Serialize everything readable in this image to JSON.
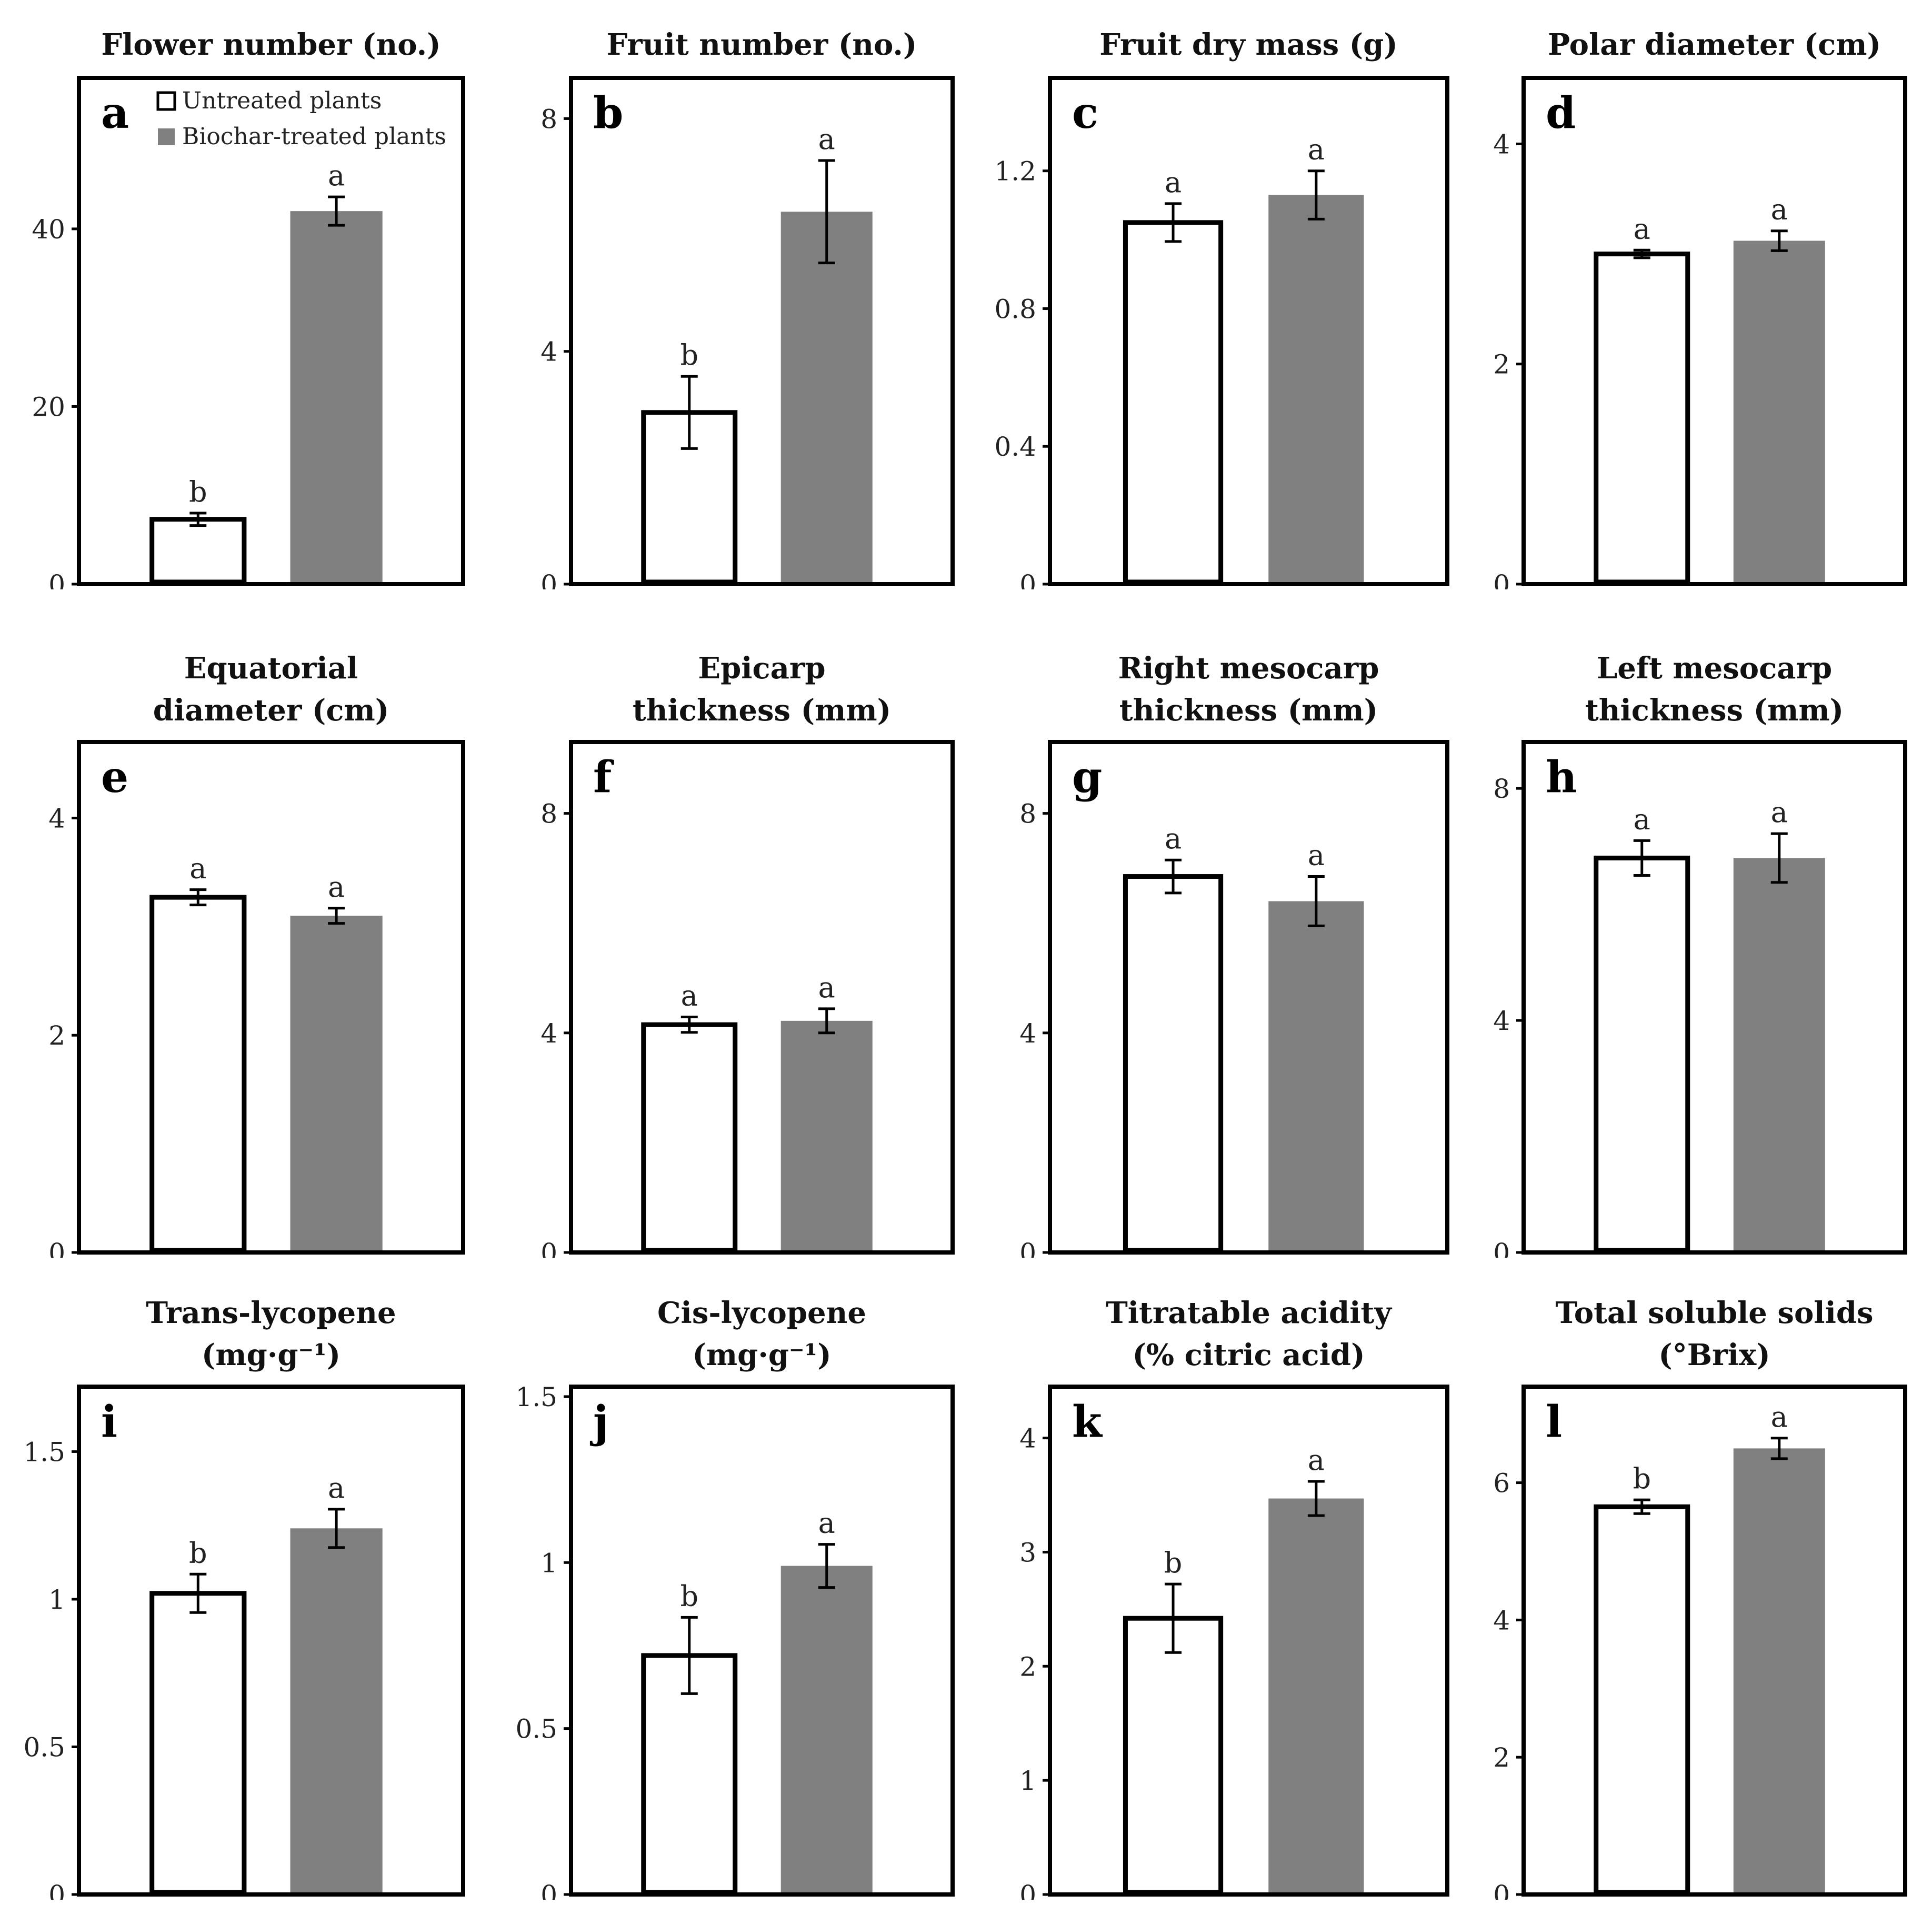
{
  "legend": {
    "untreated_label": "Untreated plants",
    "treated_label": "Biochar-treated plants",
    "untreated_fill": "#ffffff",
    "treated_fill": "#808080"
  },
  "chart_data": [
    {
      "type": "bar",
      "letter": "a",
      "title_lines": [
        "Flower number (no.)"
      ],
      "ylim": [
        0,
        57
      ],
      "ticks": [
        0,
        20,
        40
      ],
      "tick_labels": [
        "0",
        "20",
        "40"
      ],
      "series": [
        {
          "name": "Untreated plants",
          "value": 7.3,
          "error": 0.7,
          "sig": "b"
        },
        {
          "name": "Biochar-treated plants",
          "value": 42.0,
          "error": 1.6,
          "sig": "a"
        }
      ]
    },
    {
      "type": "bar",
      "letter": "b",
      "title_lines": [
        "Fruit number (no.)"
      ],
      "ylim": [
        0,
        8.7
      ],
      "ticks": [
        0,
        4,
        8
      ],
      "tick_labels": [
        "0",
        "4",
        "8"
      ],
      "series": [
        {
          "name": "Untreated plants",
          "value": 2.95,
          "error": 0.62,
          "sig": "b"
        },
        {
          "name": "Biochar-treated plants",
          "value": 6.4,
          "error": 0.88,
          "sig": "a"
        }
      ]
    },
    {
      "type": "bar",
      "letter": "c",
      "title_lines": [
        "Fruit dry mass (g)"
      ],
      "ylim": [
        0,
        1.47
      ],
      "ticks": [
        0,
        0.4,
        0.8,
        1.2
      ],
      "tick_labels": [
        "0",
        "0.4",
        "0.8",
        "1.2"
      ],
      "series": [
        {
          "name": "Untreated plants",
          "value": 1.05,
          "error": 0.055,
          "sig": "a"
        },
        {
          "name": "Biochar-treated plants",
          "value": 1.13,
          "error": 0.07,
          "sig": "a"
        }
      ]
    },
    {
      "type": "bar",
      "letter": "d",
      "title_lines": [
        "Polar diameter (cm)"
      ],
      "ylim": [
        0,
        4.6
      ],
      "ticks": [
        0,
        2,
        4
      ],
      "tick_labels": [
        "0",
        "2",
        "4"
      ],
      "series": [
        {
          "name": "Untreated plants",
          "value": 3.0,
          "error": 0.035,
          "sig": "a"
        },
        {
          "name": "Biochar-treated plants",
          "value": 3.12,
          "error": 0.09,
          "sig": "a"
        }
      ]
    },
    {
      "type": "bar",
      "letter": "e",
      "title_lines": [
        "Equatorial",
        "diameter (cm)"
      ],
      "ylim": [
        0,
        4.7
      ],
      "ticks": [
        0,
        2,
        4
      ],
      "tick_labels": [
        "0",
        "2",
        "4"
      ],
      "series": [
        {
          "name": "Untreated plants",
          "value": 3.27,
          "error": 0.07,
          "sig": "a"
        },
        {
          "name": "Biochar-treated plants",
          "value": 3.1,
          "error": 0.07,
          "sig": "a"
        }
      ]
    },
    {
      "type": "bar",
      "letter": "f",
      "title_lines": [
        "Epicarp",
        "thickness (mm)"
      ],
      "ylim": [
        0,
        9.3
      ],
      "ticks": [
        0,
        4,
        8
      ],
      "tick_labels": [
        "0",
        "4",
        "8"
      ],
      "series": [
        {
          "name": "Untreated plants",
          "value": 4.15,
          "error": 0.14,
          "sig": "a"
        },
        {
          "name": "Biochar-treated plants",
          "value": 4.22,
          "error": 0.22,
          "sig": "a"
        }
      ]
    },
    {
      "type": "bar",
      "letter": "g",
      "title_lines": [
        "Right mesocarp",
        "thickness (mm)"
      ],
      "ylim": [
        0,
        9.3
      ],
      "ticks": [
        0,
        4,
        8
      ],
      "tick_labels": [
        "0",
        "4",
        "8"
      ],
      "series": [
        {
          "name": "Untreated plants",
          "value": 6.85,
          "error": 0.3,
          "sig": "a"
        },
        {
          "name": "Biochar-treated plants",
          "value": 6.4,
          "error": 0.45,
          "sig": "a"
        }
      ]
    },
    {
      "type": "bar",
      "letter": "h",
      "title_lines": [
        "Left mesocarp",
        "thickness (mm)"
      ],
      "ylim": [
        0,
        8.8
      ],
      "ticks": [
        0,
        4,
        8
      ],
      "tick_labels": [
        "0",
        "4",
        "8"
      ],
      "series": [
        {
          "name": "Untreated plants",
          "value": 6.8,
          "error": 0.3,
          "sig": "a"
        },
        {
          "name": "Biochar-treated plants",
          "value": 6.8,
          "error": 0.42,
          "sig": "a"
        }
      ]
    },
    {
      "type": "bar",
      "letter": "i",
      "title_lines": [
        "Trans-lycopene",
        "(mg·g⁻¹)"
      ],
      "ylim": [
        0,
        1.72
      ],
      "ticks": [
        0,
        0.5,
        1,
        1.5
      ],
      "tick_labels": [
        "0",
        "0.5",
        "1",
        "1.5"
      ],
      "series": [
        {
          "name": "Untreated plants",
          "value": 1.02,
          "error": 0.065,
          "sig": "b"
        },
        {
          "name": "Biochar-treated plants",
          "value": 1.24,
          "error": 0.065,
          "sig": "a"
        }
      ]
    },
    {
      "type": "bar",
      "letter": "j",
      "title_lines": [
        "Cis-lycopene",
        "(mg·g⁻¹)"
      ],
      "ylim": [
        0,
        1.53
      ],
      "ticks": [
        0,
        0.5,
        1,
        1.5
      ],
      "tick_labels": [
        "0",
        "0.5",
        "1",
        "1.5"
      ],
      "series": [
        {
          "name": "Untreated plants",
          "value": 0.72,
          "error": 0.115,
          "sig": "b"
        },
        {
          "name": "Biochar-treated plants",
          "value": 0.99,
          "error": 0.065,
          "sig": "a"
        }
      ]
    },
    {
      "type": "bar",
      "letter": "k",
      "title_lines": [
        "Titratable acidity",
        "(% citric acid)"
      ],
      "ylim": [
        0,
        4.45
      ],
      "ticks": [
        0,
        1,
        2,
        3,
        4
      ],
      "tick_labels": [
        "0",
        "1",
        "2",
        "3",
        "4"
      ],
      "series": [
        {
          "name": "Untreated plants",
          "value": 2.42,
          "error": 0.3,
          "sig": "b"
        },
        {
          "name": "Biochar-treated plants",
          "value": 3.47,
          "error": 0.15,
          "sig": "a"
        }
      ]
    },
    {
      "type": "bar",
      "letter": "l",
      "title_lines": [
        "Total soluble solids",
        "(°Brix)"
      ],
      "ylim": [
        0,
        7.4
      ],
      "ticks": [
        0,
        2,
        4,
        6
      ],
      "tick_labels": [
        "0",
        "2",
        "4",
        "6"
      ],
      "series": [
        {
          "name": "Untreated plants",
          "value": 5.65,
          "error": 0.1,
          "sig": "b"
        },
        {
          "name": "Biochar-treated plants",
          "value": 6.5,
          "error": 0.15,
          "sig": "a"
        }
      ]
    }
  ]
}
